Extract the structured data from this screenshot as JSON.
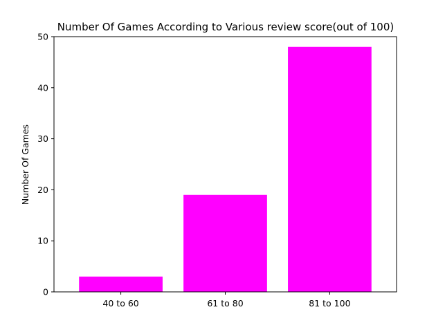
{
  "chart_data": {
    "type": "bar",
    "title": "Number Of Games According to Various review score(out of 100)",
    "xlabel": "",
    "ylabel": "Number Of Games",
    "categories": [
      "40 to 60",
      "61 to 80",
      "81 to 100"
    ],
    "values": [
      3,
      19,
      48
    ],
    "ylim": [
      0,
      50
    ],
    "yticks": [
      0,
      10,
      20,
      30,
      40,
      50
    ],
    "grid": false,
    "bar_color": "#ff00ff"
  }
}
